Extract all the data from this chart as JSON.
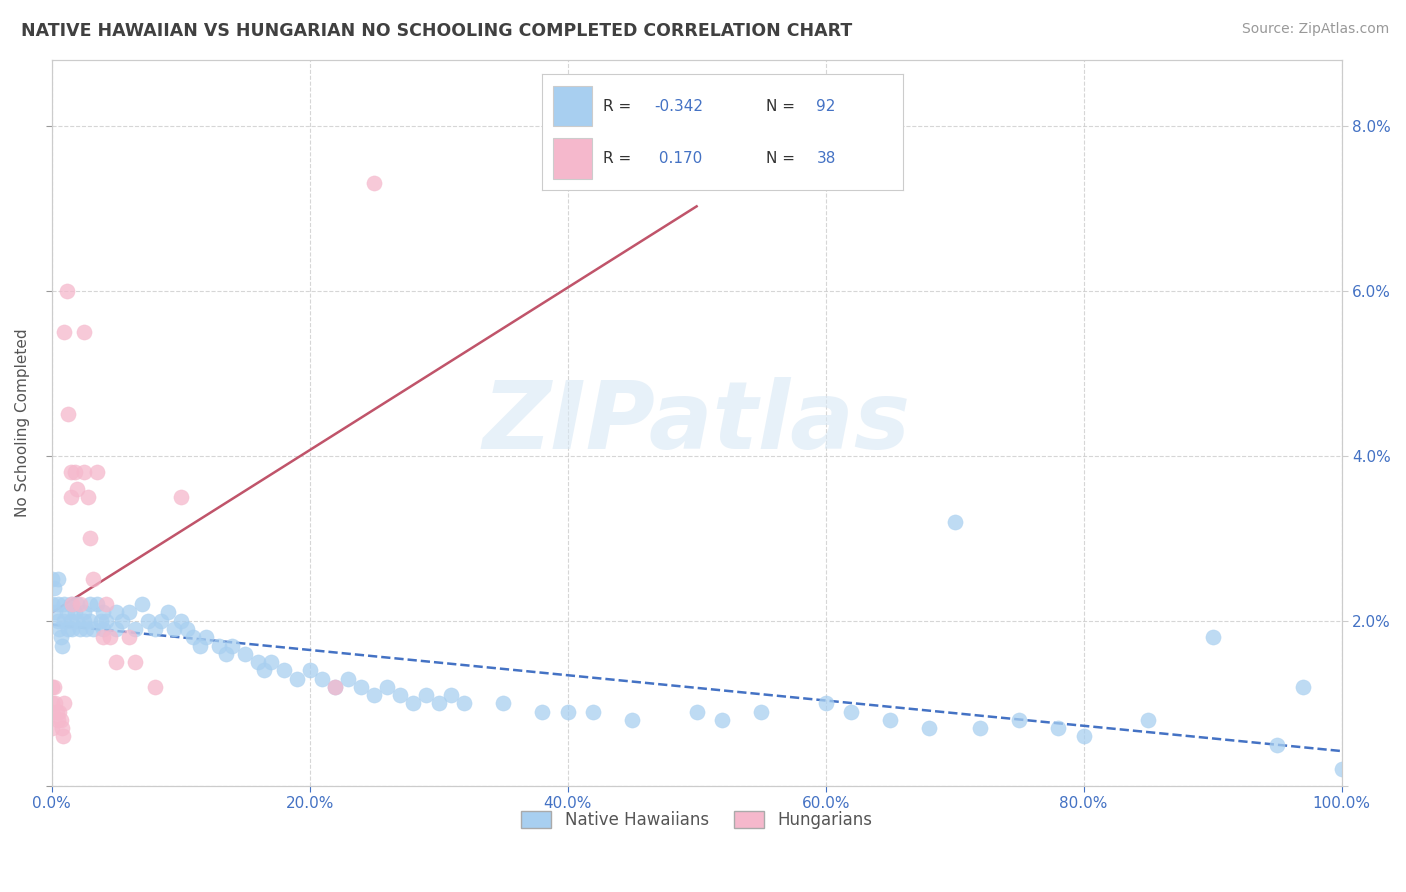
{
  "title": "NATIVE HAWAIIAN VS HUNGARIAN NO SCHOOLING COMPLETED CORRELATION CHART",
  "source": "Source: ZipAtlas.com",
  "ylabel": "No Schooling Completed",
  "xlim": [
    0.0,
    1.0
  ],
  "ylim": [
    0.0,
    0.088
  ],
  "yticks": [
    0.0,
    0.02,
    0.04,
    0.06,
    0.08
  ],
  "ytick_labels_right": [
    "",
    "2.0%",
    "4.0%",
    "6.0%",
    "8.0%"
  ],
  "xticks": [
    0.0,
    0.2,
    0.4,
    0.6,
    0.8,
    1.0
  ],
  "xtick_labels": [
    "0.0%",
    "20.0%",
    "40.0%",
    "60.0%",
    "80.0%",
    "100.0%"
  ],
  "legend_labels": [
    "Native Hawaiians",
    "Hungarians"
  ],
  "blue_color": "#a8cff0",
  "pink_color": "#f5b8cc",
  "blue_line_color": "#4472c4",
  "pink_line_color": "#c0546a",
  "blue_line_dash": "dashed",
  "pink_line_dash": "solid",
  "R_blue": -0.342,
  "N_blue": 92,
  "R_pink": 0.17,
  "N_pink": 38,
  "watermark": "ZIPatlas",
  "grid_color": "#cccccc",
  "background_color": "#ffffff",
  "title_color": "#404040",
  "tick_color": "#4472c4",
  "blue_scatter_x": [
    0.0,
    0.0,
    0.002,
    0.003,
    0.005,
    0.005,
    0.005,
    0.006,
    0.007,
    0.008,
    0.01,
    0.01,
    0.012,
    0.013,
    0.015,
    0.015,
    0.016,
    0.018,
    0.02,
    0.02,
    0.022,
    0.025,
    0.025,
    0.027,
    0.03,
    0.03,
    0.032,
    0.035,
    0.038,
    0.04,
    0.04,
    0.042,
    0.05,
    0.05,
    0.055,
    0.06,
    0.065,
    0.07,
    0.075,
    0.08,
    0.085,
    0.09,
    0.095,
    0.1,
    0.105,
    0.11,
    0.115,
    0.12,
    0.13,
    0.135,
    0.14,
    0.15,
    0.16,
    0.165,
    0.17,
    0.18,
    0.19,
    0.2,
    0.21,
    0.22,
    0.23,
    0.24,
    0.25,
    0.26,
    0.27,
    0.28,
    0.29,
    0.3,
    0.31,
    0.32,
    0.35,
    0.38,
    0.4,
    0.42,
    0.45,
    0.5,
    0.52,
    0.55,
    0.6,
    0.62,
    0.65,
    0.68,
    0.7,
    0.72,
    0.75,
    0.78,
    0.8,
    0.85,
    0.9,
    0.95,
    0.97,
    1.0
  ],
  "blue_scatter_y": [
    0.025,
    0.022,
    0.024,
    0.021,
    0.025,
    0.022,
    0.02,
    0.019,
    0.018,
    0.017,
    0.022,
    0.02,
    0.021,
    0.019,
    0.022,
    0.02,
    0.019,
    0.021,
    0.022,
    0.02,
    0.019,
    0.021,
    0.02,
    0.019,
    0.022,
    0.02,
    0.019,
    0.022,
    0.02,
    0.021,
    0.019,
    0.02,
    0.021,
    0.019,
    0.02,
    0.021,
    0.019,
    0.022,
    0.02,
    0.019,
    0.02,
    0.021,
    0.019,
    0.02,
    0.019,
    0.018,
    0.017,
    0.018,
    0.017,
    0.016,
    0.017,
    0.016,
    0.015,
    0.014,
    0.015,
    0.014,
    0.013,
    0.014,
    0.013,
    0.012,
    0.013,
    0.012,
    0.011,
    0.012,
    0.011,
    0.01,
    0.011,
    0.01,
    0.011,
    0.01,
    0.01,
    0.009,
    0.009,
    0.009,
    0.008,
    0.009,
    0.008,
    0.009,
    0.01,
    0.009,
    0.008,
    0.007,
    0.032,
    0.007,
    0.008,
    0.007,
    0.006,
    0.008,
    0.018,
    0.005,
    0.012,
    0.002
  ],
  "pink_scatter_x": [
    0.0,
    0.0,
    0.0,
    0.0,
    0.002,
    0.003,
    0.004,
    0.005,
    0.006,
    0.007,
    0.008,
    0.009,
    0.01,
    0.01,
    0.012,
    0.013,
    0.015,
    0.015,
    0.016,
    0.018,
    0.02,
    0.022,
    0.025,
    0.025,
    0.028,
    0.03,
    0.032,
    0.035,
    0.04,
    0.042,
    0.045,
    0.05,
    0.06,
    0.065,
    0.08,
    0.1,
    0.22,
    0.25
  ],
  "pink_scatter_y": [
    0.012,
    0.01,
    0.009,
    0.007,
    0.012,
    0.01,
    0.009,
    0.008,
    0.009,
    0.008,
    0.007,
    0.006,
    0.01,
    0.055,
    0.06,
    0.045,
    0.038,
    0.035,
    0.022,
    0.038,
    0.036,
    0.022,
    0.055,
    0.038,
    0.035,
    0.03,
    0.025,
    0.038,
    0.018,
    0.022,
    0.018,
    0.015,
    0.018,
    0.015,
    0.012,
    0.035,
    0.012,
    0.073
  ]
}
